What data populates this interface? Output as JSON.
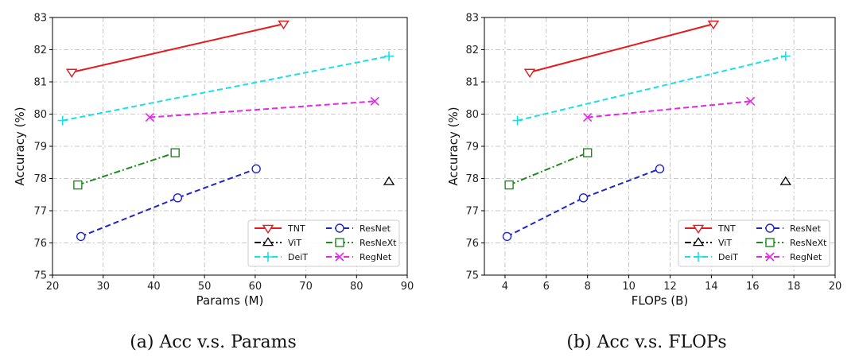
{
  "chart_data": [
    {
      "type": "line",
      "caption": "(a) Acc v.s. Params",
      "xlabel": "Params (M)",
      "ylabel": "Accuracy (%)",
      "xlim": [
        20,
        90
      ],
      "ylim": [
        75,
        83
      ],
      "xticks": [
        20,
        30,
        40,
        50,
        60,
        70,
        80,
        90
      ],
      "yticks": [
        75,
        76,
        77,
        78,
        79,
        80,
        81,
        82,
        83
      ],
      "grid": true,
      "legend_position": "lower-right",
      "series": [
        {
          "name": "TNT",
          "color": "#e41a1c",
          "dash": "solid",
          "marker": "triangle-down",
          "x": [
            23.8,
            65.6
          ],
          "y": [
            81.3,
            82.8
          ]
        },
        {
          "name": "ViT",
          "color": "#000000",
          "dash": "dashdot",
          "marker": "triangle-up",
          "x": [
            86.4
          ],
          "y": [
            77.9
          ]
        },
        {
          "name": "DeiT",
          "color": "#17e0e6",
          "dash": "dashed",
          "marker": "plus",
          "x": [
            22.0,
            86.4
          ],
          "y": [
            79.8,
            81.8
          ]
        },
        {
          "name": "ResNet",
          "color": "#1f24c9",
          "dash": "dashed",
          "marker": "circle",
          "x": [
            25.6,
            44.7,
            60.2
          ],
          "y": [
            76.2,
            77.4,
            78.3
          ]
        },
        {
          "name": "ResNeXt",
          "color": "#1e8a1e",
          "dash": "dashdot",
          "marker": "square",
          "x": [
            25.0,
            44.2
          ],
          "y": [
            77.8,
            78.8
          ]
        },
        {
          "name": "RegNet",
          "color": "#e628e6",
          "dash": "dashed",
          "marker": "x",
          "x": [
            39.2,
            83.6
          ],
          "y": [
            79.9,
            80.4
          ]
        }
      ]
    },
    {
      "type": "line",
      "caption": "(b) Acc v.s. FLOPs",
      "xlabel": "FLOPs (B)",
      "ylabel": "Accuracy (%)",
      "xlim": [
        3,
        20
      ],
      "ylim": [
        75,
        83
      ],
      "xticks": [
        4,
        6,
        8,
        10,
        12,
        14,
        16,
        18,
        20
      ],
      "yticks": [
        75,
        76,
        77,
        78,
        79,
        80,
        81,
        82,
        83
      ],
      "grid": true,
      "legend_position": "lower-right",
      "series": [
        {
          "name": "TNT",
          "color": "#e41a1c",
          "dash": "solid",
          "marker": "triangle-down",
          "x": [
            5.2,
            14.1
          ],
          "y": [
            81.3,
            82.8
          ]
        },
        {
          "name": "ViT",
          "color": "#000000",
          "dash": "dashdot",
          "marker": "triangle-up",
          "x": [
            17.6
          ],
          "y": [
            77.9
          ]
        },
        {
          "name": "DeiT",
          "color": "#17e0e6",
          "dash": "dashed",
          "marker": "plus",
          "x": [
            4.6,
            17.6
          ],
          "y": [
            79.8,
            81.8
          ]
        },
        {
          "name": "ResNet",
          "color": "#1f24c9",
          "dash": "dashed",
          "marker": "circle",
          "x": [
            4.1,
            7.8,
            11.5
          ],
          "y": [
            76.2,
            77.4,
            78.3
          ]
        },
        {
          "name": "ResNeXt",
          "color": "#1e8a1e",
          "dash": "dashdot",
          "marker": "square",
          "x": [
            4.2,
            8.0
          ],
          "y": [
            77.8,
            78.8
          ]
        },
        {
          "name": "RegNet",
          "color": "#e628e6",
          "dash": "dashed",
          "marker": "x",
          "x": [
            8.0,
            15.9
          ],
          "y": [
            79.9,
            80.4
          ]
        }
      ]
    }
  ]
}
